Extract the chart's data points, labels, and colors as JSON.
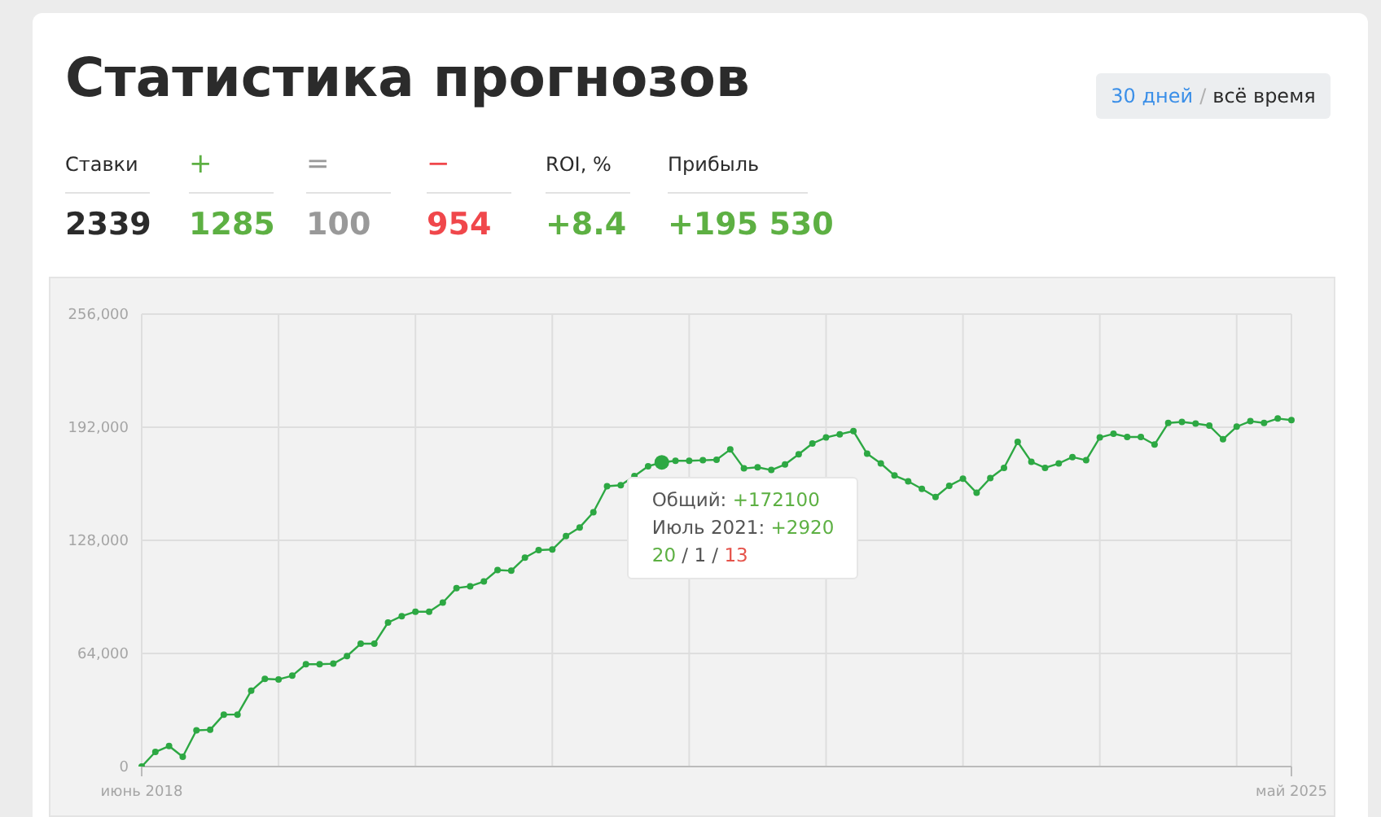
{
  "chart_data": [
    {
      "type": "other",
      "title": "Статистика прогнозов",
      "categories": [
        "Ставки",
        "+",
        "=",
        "−",
        "ROI, %",
        "Прибыль"
      ],
      "value_labels": [
        "2339",
        "1285",
        "100",
        "954",
        "+8.4",
        "+195 530"
      ],
      "colors": [
        "#2b2b2b",
        "#5db043",
        "#999999",
        "#f0474b",
        "#5db043",
        "#5db043"
      ],
      "annotations": [
        "30 дней / всё время"
      ]
    },
    {
      "type": "line",
      "categories": [
        "июнь 2018",
        null,
        null,
        null,
        null,
        null,
        null,
        null,
        null,
        null,
        null,
        null,
        null,
        null,
        null,
        null,
        null,
        null,
        null,
        null,
        null,
        null,
        null,
        null,
        null,
        null,
        null,
        null,
        null,
        null,
        null,
        null,
        null,
        null,
        null,
        null,
        null,
        null,
        null,
        null,
        null,
        null,
        null,
        null,
        null,
        null,
        null,
        null,
        null,
        null,
        null,
        null,
        null,
        null,
        null,
        null,
        null,
        null,
        null,
        null,
        null,
        null,
        null,
        null,
        null,
        null,
        null,
        null,
        null,
        null,
        null,
        null,
        null,
        null,
        null,
        null,
        null,
        null,
        null,
        null,
        null,
        null,
        null,
        null,
        "май 2025"
      ],
      "series": [
        {
          "color": "#2da843",
          "values": [
            0,
            8270,
            11600,
            5500,
            20500,
            20800,
            29400,
            29400,
            42900,
            49600,
            49300,
            51400,
            57900,
            57900,
            58200,
            62500,
            69500,
            69500,
            81500,
            85100,
            87600,
            87600,
            92800,
            101000,
            102000,
            104700,
            111200,
            110800,
            118200,
            122500,
            122800,
            130400,
            135300,
            143900,
            158600,
            159200,
            164400,
            169900,
            172100,
            173000,
            173000,
            173300,
            173600,
            179400,
            168700,
            169300,
            167800,
            170900,
            176700,
            182800,
            186200,
            188000,
            189800,
            177000,
            171500,
            164700,
            161400,
            157100,
            152500,
            158900,
            162900,
            154900,
            163200,
            169000,
            183700,
            172400,
            169000,
            171500,
            175100,
            173300,
            186200,
            188300,
            186500,
            186500,
            182200,
            194400,
            195000,
            194100,
            192900,
            185200,
            192300,
            195400,
            194400,
            196900,
            196000
          ]
        }
      ],
      "ylim": [
        0,
        256000
      ],
      "yticks": [
        {
          "value": 0,
          "label": "0"
        },
        {
          "value": 64000,
          "label": "64,000"
        },
        {
          "value": 128000,
          "label": "128,000"
        },
        {
          "value": 192000,
          "label": "192,000"
        },
        {
          "value": 256000,
          "label": "256,000"
        }
      ],
      "grid": true,
      "marker": "circle",
      "annotations": [
        {
          "text": "Общий: +172100",
          "y": 172100
        },
        "Июль 2021: +2920",
        "20 / 1 / 13"
      ]
    }
  ]
}
